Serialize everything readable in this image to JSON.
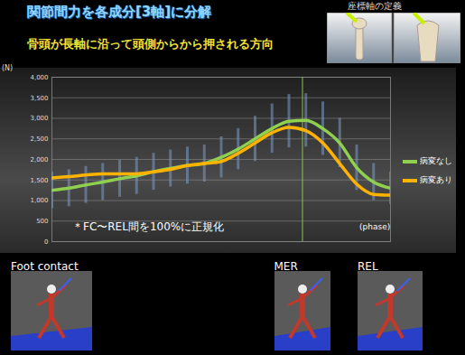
{
  "title": "関節間力を各成分[3軸]に分解",
  "subtitle": "骨頭が長軸に沿って頭側からから押される方向",
  "inset_title": "座標軸の定義",
  "chart_data": {
    "type": "line",
    "y_label": "(N)",
    "x_label": "(phase)",
    "note": "＊FC〜REL間を100%に正規化",
    "x": [
      0,
      5,
      10,
      15,
      20,
      25,
      30,
      35,
      40,
      45,
      50,
      55,
      60,
      65,
      70,
      75,
      80,
      85,
      90,
      95,
      100
    ],
    "series": [
      {
        "name": "病変なし",
        "color": "#8fd14f",
        "values": [
          1250,
          1300,
          1380,
          1450,
          1530,
          1600,
          1700,
          1780,
          1850,
          1900,
          2050,
          2250,
          2500,
          2750,
          2930,
          2950,
          2750,
          2400,
          1800,
          1450,
          1300
        ],
        "error": [
          450,
          450,
          450,
          450,
          450,
          450,
          450,
          450,
          450,
          450,
          500,
          500,
          550,
          600,
          650,
          650,
          650,
          600,
          550,
          450,
          400
        ]
      },
      {
        "name": "病変あり",
        "color": "#ffb300",
        "values": [
          1550,
          1580,
          1620,
          1650,
          1650,
          1650,
          1700,
          1760,
          1850,
          1900,
          1950,
          2150,
          2400,
          2650,
          2780,
          2700,
          2400,
          1900,
          1400,
          1150,
          1130
        ]
      }
    ],
    "xlim": [
      0,
      100
    ],
    "ylim": [
      0,
      4000
    ],
    "yticks": [
      0,
      500,
      1000,
      1500,
      2000,
      2500,
      3000,
      3500,
      4000
    ],
    "grid": true,
    "tick_labels": "y",
    "legend": "right",
    "vertical_line": {
      "x": 74,
      "color": "#8bc34a"
    },
    "phases": [
      {
        "x": 0,
        "label": "Foot contact"
      },
      {
        "x": 74,
        "label": "MER"
      },
      {
        "x": 100,
        "label": "REL"
      }
    ]
  }
}
